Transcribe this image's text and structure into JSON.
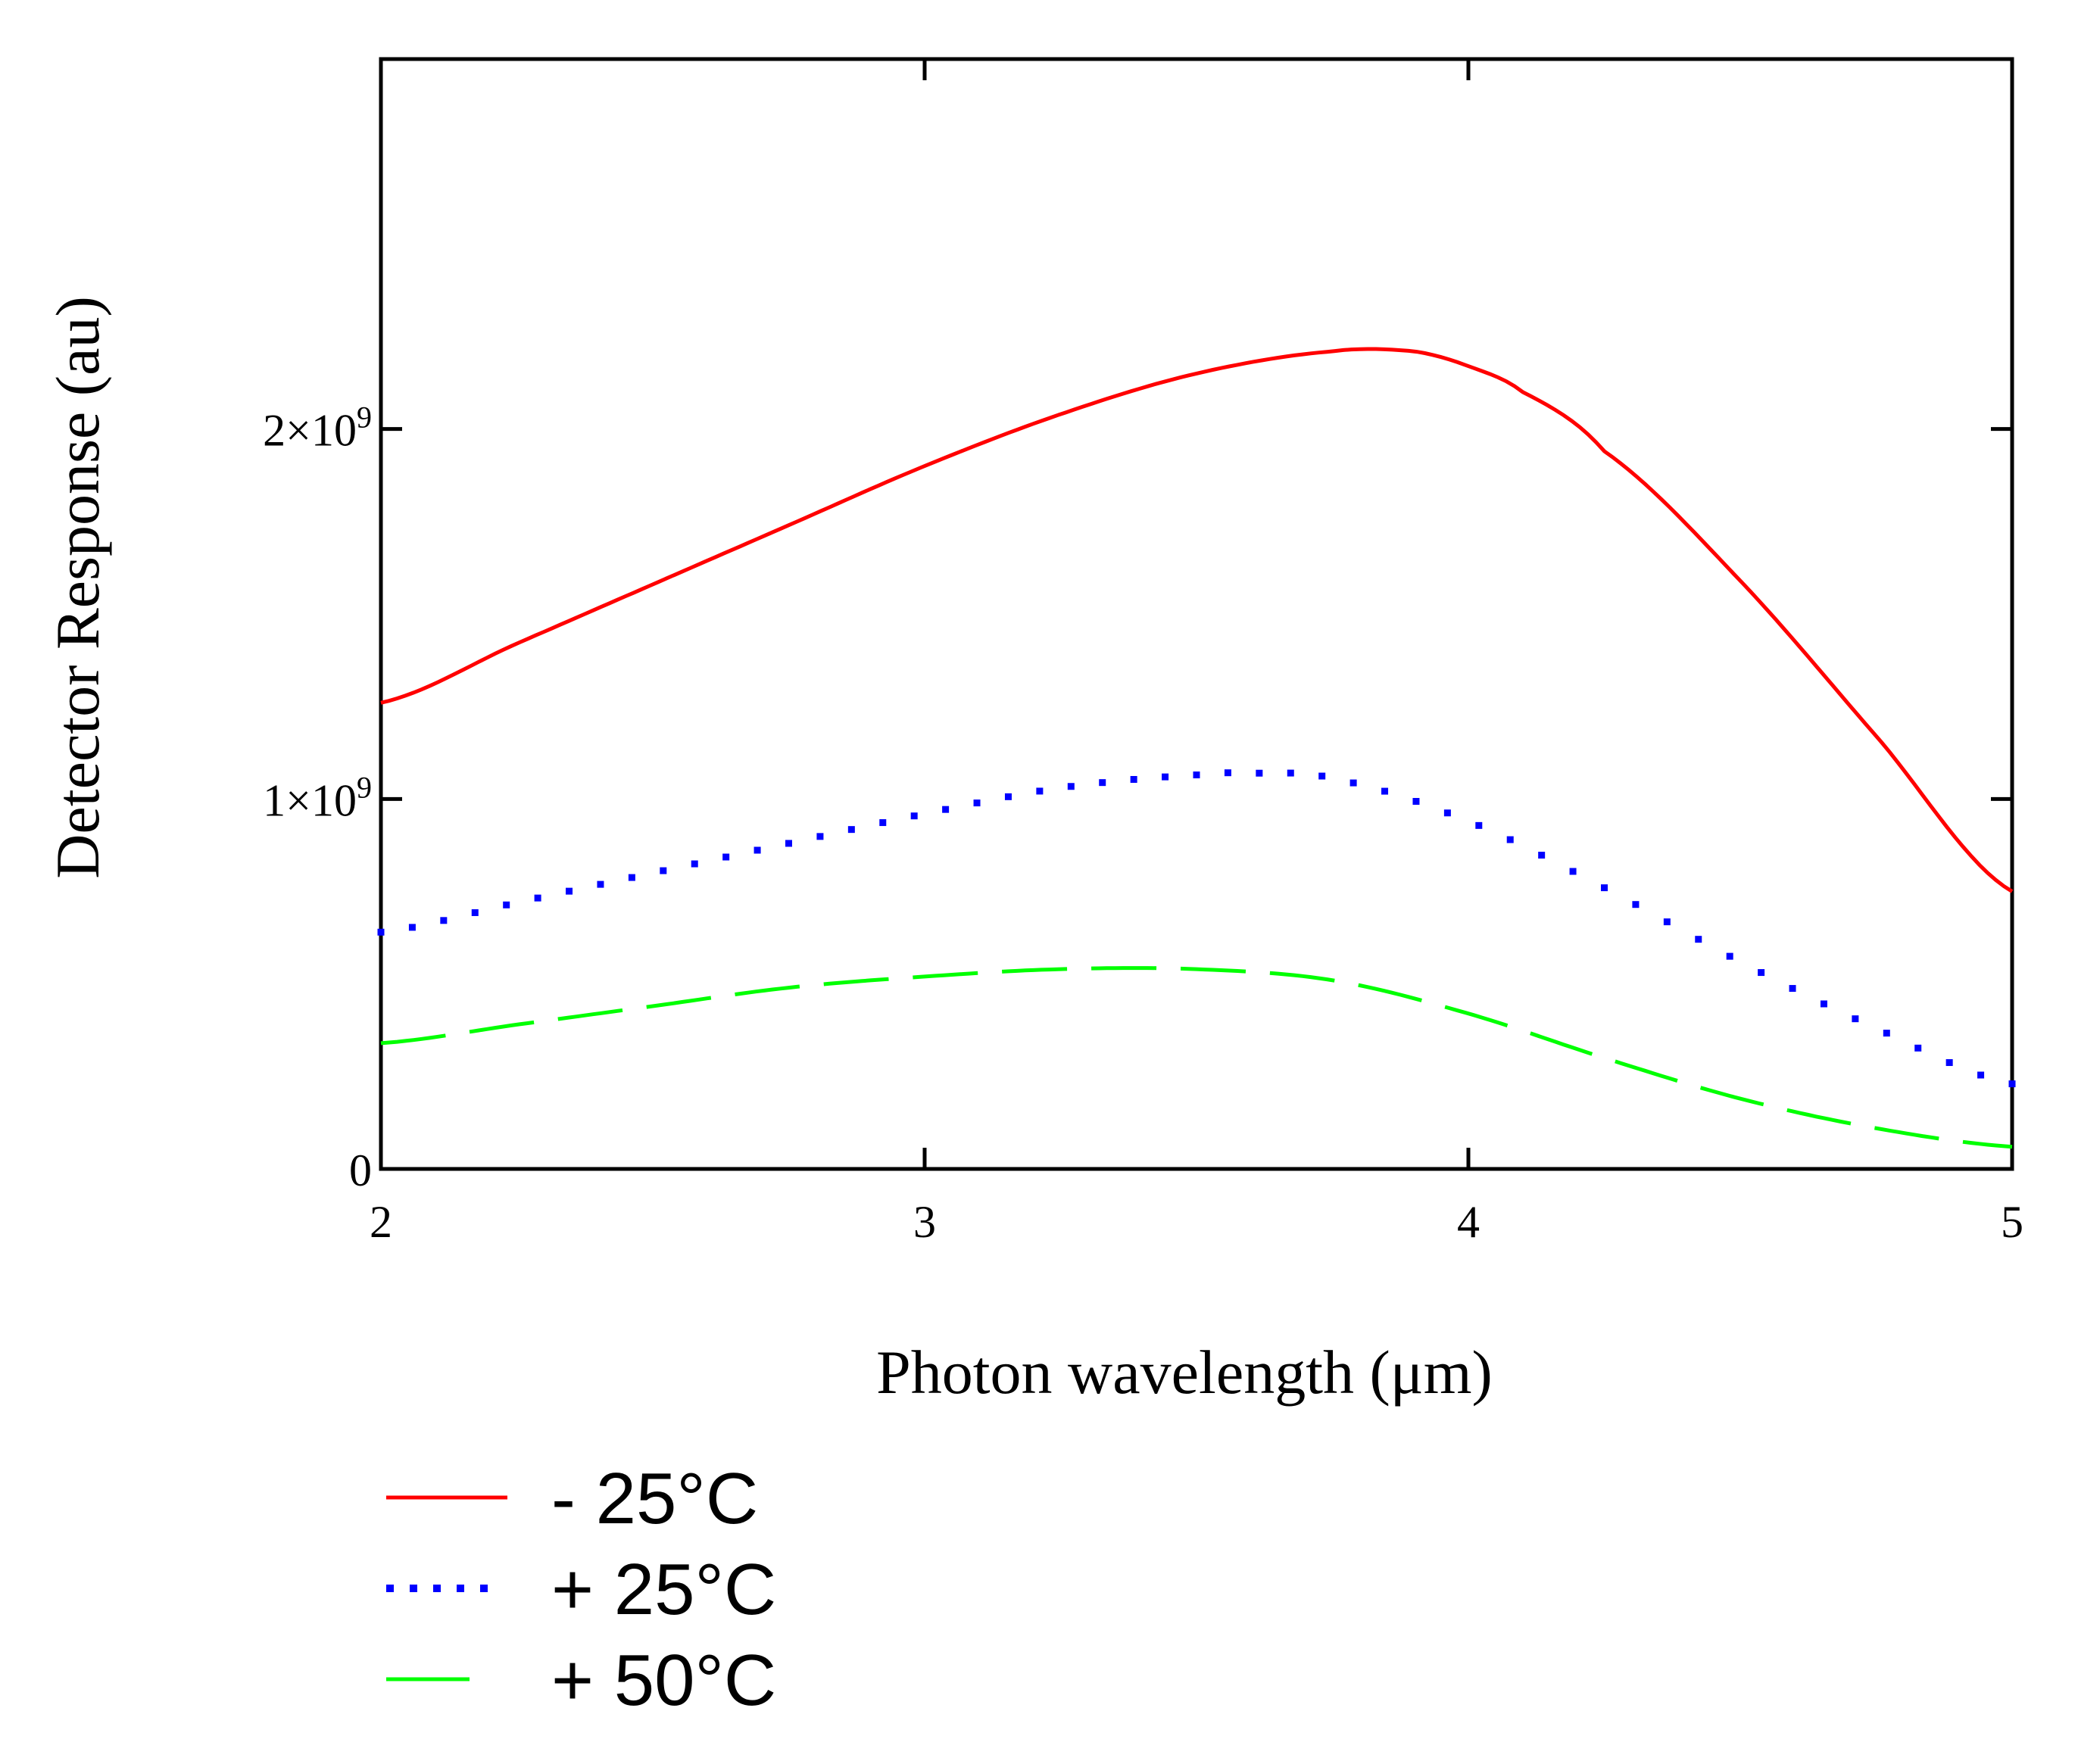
{
  "chart_data": {
    "type": "line",
    "title": "",
    "xlabel": "Photon wavelength (μm)",
    "ylabel": "Detector Response (au)",
    "xlim": [
      2,
      5
    ],
    "ylim": [
      0,
      3000000000
    ],
    "x_ticks": [
      {
        "value": 2,
        "label": "2"
      },
      {
        "value": 3,
        "label": "3"
      },
      {
        "value": 4,
        "label": "4"
      },
      {
        "value": 5,
        "label": "5"
      }
    ],
    "y_ticks": [
      {
        "value": 0,
        "mantissa": "0",
        "exponent": ""
      },
      {
        "value": 1000000000,
        "mantissa": "1×10",
        "exponent": "9"
      },
      {
        "value": 2000000000,
        "mantissa": "2×10",
        "exponent": "9"
      }
    ],
    "legend_position": "bottom-left",
    "series": [
      {
        "name": "- 25°C",
        "color": "#ff0000",
        "style": "solid",
        "x": [
          2.0,
          2.25,
          2.5,
          2.75,
          3.0,
          3.25,
          3.5,
          3.75,
          3.9,
          4.0,
          4.1,
          4.25,
          4.5,
          4.75,
          5.0
        ],
        "y": [
          1260000000,
          1420000000,
          1580000000,
          1740000000,
          1900000000,
          2040000000,
          2150000000,
          2210000000,
          2210000000,
          2170000000,
          2100000000,
          1940000000,
          1590000000,
          1170000000,
          750000000
        ]
      },
      {
        "name": "+ 25°C",
        "color": "#0000ff",
        "style": "dotted",
        "x": [
          2.0,
          2.25,
          2.5,
          2.75,
          3.0,
          3.25,
          3.5,
          3.6,
          3.75,
          4.0,
          4.25,
          4.5,
          4.75,
          5.0
        ],
        "y": [
          640000000,
          720000000,
          800000000,
          880000000,
          960000000,
          1030000000,
          1065000000,
          1070000000,
          1055000000,
          940000000,
          760000000,
          560000000,
          380000000,
          230000000
        ]
      },
      {
        "name": "+ 50°C",
        "color": "#00ff00",
        "style": "dashed",
        "x": [
          2.0,
          2.25,
          2.5,
          2.75,
          3.0,
          3.25,
          3.5,
          3.75,
          4.0,
          4.25,
          4.5,
          4.75,
          5.0
        ],
        "y": [
          340000000,
          390000000,
          440000000,
          490000000,
          520000000,
          540000000,
          540000000,
          510000000,
          420000000,
          300000000,
          190000000,
          110000000,
          60000000
        ]
      }
    ]
  }
}
